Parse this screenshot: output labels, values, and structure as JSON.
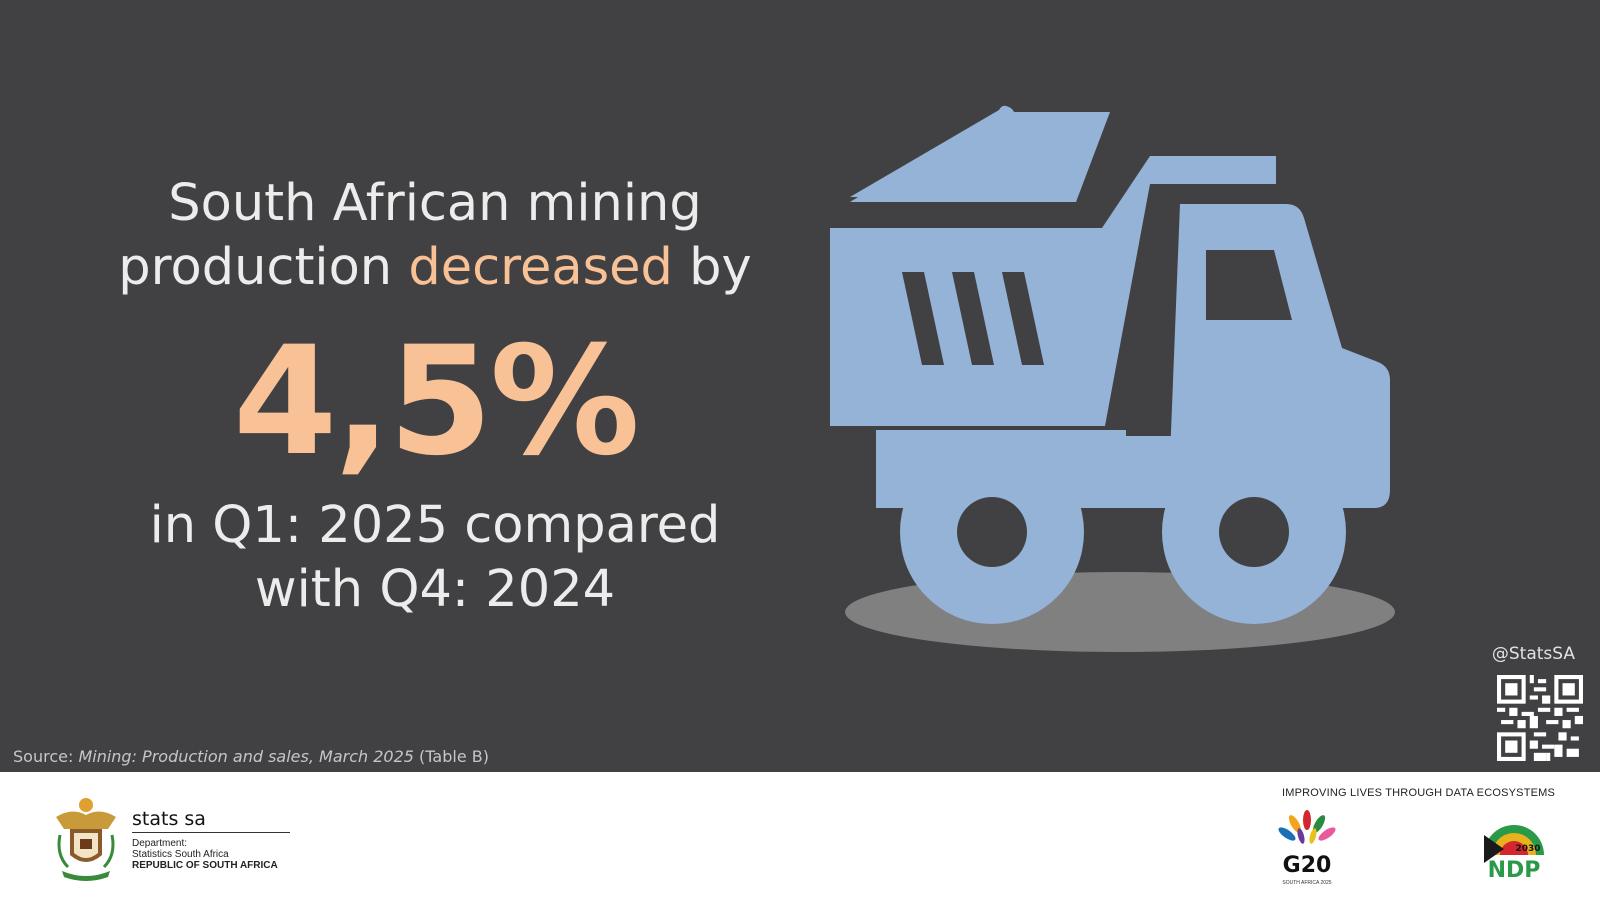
{
  "headline": {
    "line1": "South African mining",
    "line2_pre": "production ",
    "line2_highlight": "decreased",
    "line2_post": " by"
  },
  "figure": {
    "value": "4,5%"
  },
  "comparison": {
    "line1": "in Q1: 2025 compared",
    "line2": "with Q4: 2024"
  },
  "social": {
    "handle": "@StatsSA"
  },
  "source": {
    "prefix": "Source: ",
    "title": "Mining: Production and sales, March 2025",
    "suffix": " (Table B)"
  },
  "footer": {
    "org_name": "stats sa",
    "dept_line1": "Department:",
    "dept_line2": "Statistics South Africa",
    "dept_line3": "REPUBLIC OF SOUTH AFRICA",
    "tagline": "IMPROVING LIVES THROUGH DATA ECOSYSTEMS",
    "g20_text": "G20",
    "g20_sub": "SOUTH AFRICA 2025",
    "ndp_text": "NDP",
    "ndp_year": "2030"
  },
  "colors": {
    "background": "#414143",
    "accent": "#f8c196",
    "truck": "#95b3d7",
    "shadow": "#808080"
  },
  "icons": [
    "dump-truck-icon",
    "qr-code-icon",
    "coat-of-arms-icon",
    "g20-logo-icon",
    "ndp-logo-icon"
  ]
}
